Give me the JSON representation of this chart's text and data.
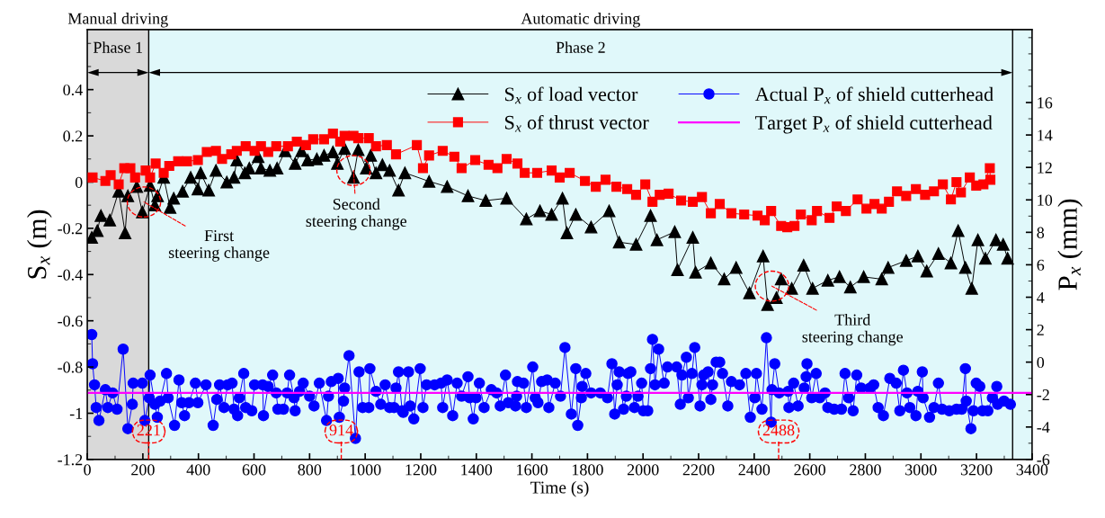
{
  "chart_data": {
    "type": "line",
    "xlabel": "Time (s)",
    "ylabel": "S$_{x}$ (m)",
    "y2label": "P$_{x}$ (mm)",
    "xlim": [
      0,
      3400
    ],
    "xticks": [
      0,
      200,
      400,
      600,
      800,
      1000,
      1200,
      1400,
      1600,
      1800,
      2000,
      2200,
      2400,
      2600,
      2800,
      3000,
      3200,
      3400
    ],
    "ylim": [
      -1.2,
      0.66
    ],
    "yticks": [
      -1.2,
      -1.0,
      -0.8,
      -0.6,
      -0.4,
      -0.2,
      0,
      0.2,
      0.4
    ],
    "y2lim": [
      -6,
      20.5
    ],
    "y2ticks": [
      -6,
      -4,
      -2,
      0,
      2,
      4,
      6,
      8,
      10,
      12,
      14,
      16
    ],
    "grid": false,
    "legend": "top",
    "bands": [
      {
        "axis": "x",
        "from": 0,
        "to": 221,
        "label": "Phase 1",
        "color": "#d9d9d9"
      },
      {
        "axis": "x",
        "from": 221,
        "to": 3330,
        "label": "Phase 2",
        "color": "#e0f8fa"
      },
      {
        "axis": "x",
        "from": 3330,
        "to": 3400,
        "color": "#e0f8fa"
      }
    ],
    "ref_lines": [
      {
        "axis": "x",
        "value": 221,
        "color": "#000000"
      },
      {
        "axis": "x",
        "value": 3330,
        "color": "#000000"
      },
      {
        "axis": "x",
        "value": 221,
        "label": "221",
        "color": "#ff0000",
        "line_style": "dashed"
      },
      {
        "axis": "x",
        "value": 914,
        "label": "914",
        "color": "#ff0000",
        "line_style": "dashed"
      },
      {
        "axis": "x",
        "value": 2488,
        "label": "2488",
        "color": "#ff0000",
        "line_style": "dashed"
      }
    ],
    "annotations": [
      "Manual driving",
      "Automatic driving",
      {
        "text": "First\nsteering change",
        "x": 204,
        "y": -0.086
      },
      {
        "text": "Second\nsteering change",
        "x": 958,
        "y": 0.05
      },
      {
        "text": "Third\nsteering change",
        "x": 2464,
        "y": -0.45
      }
    ],
    "series": [
      {
        "name": "S$_{x}$ of load vector",
        "color": "#000000",
        "marker": "triangle",
        "x": [
          16,
          36,
          49,
          81,
          113,
          136,
          146,
          178,
          198,
          226,
          243,
          253,
          275,
          298,
          311,
          343,
          372,
          398,
          408,
          437,
          463,
          502,
          528,
          538,
          567,
          583,
          615,
          625,
          657,
          683,
          712,
          748,
          771,
          793,
          826,
          852,
          884,
          900,
          926,
          958,
          975,
          1004,
          1020,
          1039,
          1062,
          1088,
          1120,
          1143,
          1230,
          1295,
          1370,
          1434,
          1509,
          1580,
          1629,
          1671,
          1710,
          1726,
          1758,
          1813,
          1878,
          1914,
          1975,
          2027,
          2050,
          2114,
          2124,
          2179,
          2189,
          2244,
          2292,
          2335,
          2383,
          2432,
          2448,
          2480,
          2497,
          2535,
          2578,
          2610,
          2665,
          2707,
          2746,
          2794,
          2859,
          2882,
          2947,
          2989,
          3021,
          3063,
          3108,
          3134,
          3160,
          3183,
          3205,
          3232,
          3270,
          3296,
          3312
        ],
        "values": [
          -0.24,
          -0.21,
          -0.145,
          -0.165,
          -0.04,
          -0.22,
          -0.06,
          -0.02,
          -0.13,
          -0.015,
          -0.1,
          -0.06,
          0.02,
          -0.11,
          -0.07,
          -0.04,
          0.02,
          -0.03,
          0.04,
          -0.035,
          0.05,
          0.0,
          0.02,
          0.095,
          0.04,
          0.06,
          0.11,
          0.06,
          0.05,
          0.06,
          0.135,
          0.08,
          0.135,
          0.095,
          0.1,
          0.115,
          0.13,
          0.08,
          0.145,
          0.02,
          0.14,
          0.06,
          0.115,
          0.04,
          0.075,
          0.05,
          -0.035,
          0.04,
          0.003,
          -0.02,
          -0.06,
          -0.08,
          -0.07,
          -0.16,
          -0.125,
          -0.14,
          -0.07,
          -0.22,
          -0.14,
          -0.195,
          -0.125,
          -0.26,
          -0.27,
          -0.145,
          -0.25,
          -0.215,
          -0.38,
          -0.24,
          -0.39,
          -0.35,
          -0.42,
          -0.37,
          -0.48,
          -0.32,
          -0.53,
          -0.5,
          -0.42,
          -0.46,
          -0.36,
          -0.46,
          -0.425,
          -0.41,
          -0.455,
          -0.41,
          -0.42,
          -0.37,
          -0.34,
          -0.32,
          -0.385,
          -0.31,
          -0.35,
          -0.21,
          -0.37,
          -0.46,
          -0.25,
          -0.33,
          -0.25,
          -0.27,
          -0.33
        ]
      },
      {
        "name": "S$_{x}$ of thrust vector",
        "color": "#ff0000",
        "marker": "square",
        "x": [
          19,
          65,
          84,
          113,
          133,
          155,
          172,
          210,
          226,
          246,
          275,
          295,
          327,
          359,
          398,
          430,
          463,
          485,
          518,
          538,
          570,
          602,
          625,
          651,
          680,
          722,
          754,
          787,
          813,
          852,
          884,
          910,
          926,
          958,
          975,
          1013,
          1039,
          1078,
          1111,
          1186,
          1208,
          1230,
          1279,
          1321,
          1347,
          1396,
          1444,
          1476,
          1509,
          1548,
          1574,
          1619,
          1671,
          1700,
          1736,
          1791,
          1830,
          1865,
          1904,
          1943,
          1975,
          2008,
          2034,
          2060,
          2092,
          2137,
          2179,
          2212,
          2244,
          2276,
          2318,
          2364,
          2412,
          2438,
          2461,
          2497,
          2519,
          2545,
          2568,
          2607,
          2626,
          2671,
          2697,
          2730,
          2772,
          2804,
          2833,
          2859,
          2885,
          2914,
          2947,
          2982,
          3015,
          3047,
          3079,
          3108,
          3128,
          3144,
          3176,
          3199,
          3225,
          3248,
          3250
        ],
        "values": [
          0.02,
          0.005,
          0.03,
          -0.01,
          0.06,
          0.06,
          0.02,
          0.05,
          0.02,
          0.08,
          0.04,
          0.07,
          0.09,
          0.09,
          0.095,
          0.13,
          0.135,
          0.1,
          0.12,
          0.135,
          0.155,
          0.135,
          0.155,
          0.13,
          0.155,
          0.155,
          0.175,
          0.16,
          0.185,
          0.185,
          0.21,
          0.175,
          0.2,
          0.2,
          0.19,
          0.19,
          0.155,
          0.16,
          0.12,
          0.16,
          0.06,
          0.115,
          0.135,
          0.11,
          0.06,
          0.095,
          0.075,
          0.06,
          0.1,
          0.08,
          0.04,
          0.04,
          0.05,
          0.02,
          0.04,
          0.005,
          -0.02,
          0.01,
          -0.02,
          -0.03,
          -0.055,
          -0.01,
          -0.085,
          -0.055,
          -0.05,
          -0.08,
          -0.085,
          -0.065,
          -0.135,
          -0.095,
          -0.135,
          -0.14,
          -0.145,
          -0.165,
          -0.125,
          -0.19,
          -0.195,
          -0.19,
          -0.14,
          -0.165,
          -0.125,
          -0.155,
          -0.105,
          -0.125,
          -0.075,
          -0.115,
          -0.095,
          -0.115,
          -0.085,
          -0.04,
          -0.06,
          -0.03,
          -0.055,
          -0.04,
          -0.01,
          -0.075,
          0.0,
          -0.045,
          0.02,
          -0.015,
          -0.01,
          0.06,
          0.01
        ]
      },
      {
        "name": "Actual P$_{x}$ of shield cutterhead",
        "color": "#0000ff",
        "marker": "circle",
        "axis": "y2",
        "x": [
          16,
          19,
          26,
          32,
          42,
          65,
          74,
          91,
          107,
          129,
          146,
          162,
          165,
          198,
          207,
          223,
          226,
          243,
          252,
          262,
          285,
          291,
          314,
          330,
          340,
          350,
          366,
          389,
          398,
          427,
          453,
          466,
          476,
          492,
          505,
          521,
          528,
          541,
          547,
          563,
          570,
          592,
          602,
          631,
          634,
          651,
          667,
          680,
          686,
          706,
          719,
          728,
          744,
          748,
          764,
          777,
          800,
          816,
          835,
          861,
          868,
          878,
          903,
          907,
          922,
          926,
          942,
          965,
          978,
          991,
          1013,
          1017,
          1039,
          1056,
          1072,
          1088,
          1104,
          1111,
          1120,
          1133,
          1137,
          1156,
          1162,
          1175,
          1198,
          1208,
          1221,
          1250,
          1273,
          1279,
          1295,
          1315,
          1331,
          1347,
          1370,
          1376,
          1389,
          1399,
          1411,
          1428,
          1454,
          1473,
          1486,
          1505,
          1515,
          1541,
          1545,
          1548,
          1570,
          1580,
          1603,
          1612,
          1622,
          1635,
          1655,
          1661,
          1684,
          1703,
          1719,
          1742,
          1758,
          1765,
          1778,
          1781,
          1794,
          1813,
          1846,
          1872,
          1888,
          1898,
          1907,
          1914,
          1930,
          1940,
          1946,
          1956,
          1969,
          1982,
          1995,
          2001,
          2017,
          2027,
          2034,
          2043,
          2056,
          2076,
          2088,
          2121,
          2134,
          2140,
          2156,
          2163,
          2176,
          2186,
          2205,
          2212,
          2218,
          2234,
          2244,
          2250,
          2263,
          2276,
          2286,
          2305,
          2318,
          2347,
          2370,
          2386,
          2402,
          2408,
          2428,
          2444,
          2461,
          2464,
          2474,
          2490,
          2522,
          2525,
          2542,
          2558,
          2580,
          2587,
          2590,
          2607,
          2623,
          2636,
          2655,
          2665,
          2688,
          2714,
          2727,
          2740,
          2756,
          2769,
          2785,
          2817,
          2830,
          2846,
          2865,
          2888,
          2911,
          2924,
          2937,
          2950,
          2960,
          2982,
          2989,
          3005,
          3008,
          3031,
          3047,
          3063,
          3076,
          3102,
          3128,
          3147,
          3160,
          3163,
          3180,
          3189,
          3199,
          3212,
          3222,
          3241,
          3257,
          3273,
          3276,
          3299,
          3322
        ],
        "values": [
          1.7,
          -0.1,
          -1.4,
          -2.8,
          -3.6,
          -1.7,
          -2.8,
          -1.9,
          -2.9,
          0.8,
          -4.1,
          -2.6,
          -1.3,
          -1.3,
          -3.6,
          -2.2,
          -0.8,
          -2.6,
          -3.4,
          -2.4,
          -0.7,
          -2.2,
          -3.9,
          -1.1,
          -2.5,
          -3.3,
          -2.5,
          -1.3,
          -2.5,
          -1.4,
          -3.9,
          -2.3,
          -1.4,
          -2.8,
          -1.4,
          -1.3,
          -2.9,
          -3.3,
          -2.2,
          -0.7,
          -2.8,
          -3.0,
          -1.4,
          -1.4,
          -3.3,
          -1.5,
          -0.8,
          -1.9,
          -2.9,
          -2.9,
          -1.9,
          -0.8,
          -2.2,
          -3.0,
          -1.8,
          -1.3,
          -2.1,
          -2.7,
          -1.3,
          -3.6,
          -2.1,
          -1.2,
          -1.0,
          -3.4,
          -2.4,
          -1.6,
          0.4,
          -4.7,
          -0.6,
          -2.8,
          -2.8,
          -0.4,
          -1.8,
          -2.6,
          -1.4,
          -2.8,
          -2.8,
          -1.6,
          -0.6,
          -3.0,
          -3.1,
          -0.6,
          -2.7,
          -3.5,
          -0.4,
          -2.8,
          -1.4,
          -1.4,
          -1.3,
          -2.8,
          -1.1,
          -3.3,
          -1.3,
          -2.1,
          -0.9,
          -2.2,
          -3.5,
          -2.2,
          -1.3,
          -2.8,
          -1.7,
          -1.9,
          -2.7,
          -0.8,
          -2.5,
          -2.7,
          -2.1,
          -1.2,
          -1.3,
          -2.8,
          -0.3,
          -2.2,
          -2.5,
          -1.2,
          -1.1,
          -2.8,
          -1.3,
          -2.1,
          0.9,
          -3.2,
          -0.4,
          -3.9,
          -2.2,
          -1.5,
          -0.7,
          -1.9,
          -1.9,
          -2.2,
          -0.1,
          -3.2,
          -1.4,
          -0.6,
          -2.9,
          -2.1,
          -0.7,
          -0.6,
          -2.8,
          -2.1,
          -1.3,
          -3.0,
          -3.0,
          -0.4,
          1.4,
          -1.4,
          0.8,
          -1.3,
          -0.3,
          -0.3,
          -2.6,
          -0.8,
          0.3,
          -2.2,
          -0.7,
          0.9,
          -2.7,
          -1.4,
          -0.8,
          -0.6,
          -2.3,
          -1.4,
          0.0,
          0.0,
          -0.7,
          -2.7,
          -1.2,
          -1.4,
          -0.7,
          -3.4,
          -2.2,
          -0.7,
          -2.9,
          1.5,
          -3.7,
          -1.7,
          -0.1,
          -1.9,
          -1.8,
          -2.8,
          -1.3,
          -2.7,
          -1.6,
          -0.9,
          -0.1,
          -2.2,
          -0.7,
          -2.2,
          -1.9,
          -2.8,
          -2.9,
          -2.9,
          -0.7,
          -2.2,
          -3.0,
          -0.8,
          -1.6,
          -1.6,
          -1.4,
          -2.8,
          -3.3,
          -1.0,
          -1.3,
          -3.0,
          -0.5,
          -1.9,
          -2.8,
          -3.3,
          -1.8,
          -0.6,
          -2.2,
          -3.4,
          -2.8,
          -1.3,
          -2.9,
          -3.0,
          -2.9,
          -2.9,
          -0.4,
          -2.4,
          -4.1,
          -3.0,
          -1.3,
          -1.5,
          -3.0,
          -3.0,
          -2.2,
          -1.5,
          -2.6,
          -2.4,
          -2.6
        ]
      },
      {
        "name": "Target P$_{x}$ of shield cutterhead",
        "color": "#ff00ff",
        "marker": "none",
        "axis": "y2",
        "x": [
          0,
          3400
        ],
        "values": [
          -1.9,
          -1.9
        ]
      }
    ]
  }
}
